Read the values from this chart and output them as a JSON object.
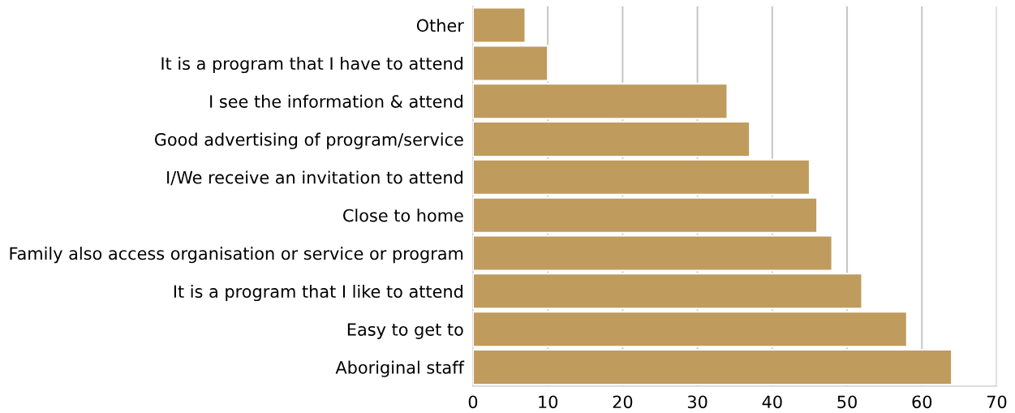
{
  "chart_data": {
    "type": "bar",
    "orientation": "horizontal",
    "categories": [
      "Other",
      "It is a program that I have to attend",
      "I see the information & attend",
      "Good advertising of program/service",
      "I/We receive an invitation to attend",
      "Close to home",
      "Family also access organisation or service or program",
      "It is a program that I like to attend",
      "Easy to get to",
      "Aboriginal staff"
    ],
    "values": [
      7,
      10,
      34,
      37,
      45,
      46,
      48,
      52,
      58,
      64
    ],
    "color": "#bf9b5e",
    "xlim": [
      0,
      70
    ],
    "xticks": [
      0,
      10,
      20,
      30,
      40,
      50,
      60,
      70
    ],
    "grid": "x",
    "legend": false
  }
}
